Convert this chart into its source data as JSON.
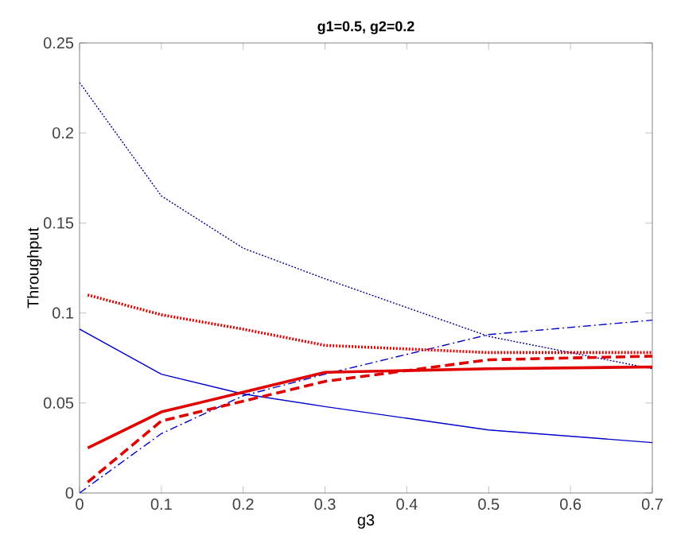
{
  "chart_data": {
    "type": "line",
    "title": "g1=0.5, g2=0.2",
    "xlabel": "g3",
    "ylabel": "Throughput",
    "xlim": [
      0,
      0.7
    ],
    "ylim": [
      0,
      0.25
    ],
    "xticks": [
      0,
      0.1,
      0.2,
      0.3,
      0.4,
      0.5,
      0.6,
      0.7
    ],
    "yticks": [
      0,
      0.05,
      0.1,
      0.15,
      0.2,
      0.25
    ],
    "grid": false,
    "marker": "none",
    "series": [
      {
        "color": "#0000cc",
        "line_style": "solid",
        "x": [
          0,
          0.1,
          0.2,
          0.3,
          0.5,
          0.7
        ],
        "values": [
          0.091,
          0.066,
          0.055,
          0.048,
          0.035,
          0.028
        ]
      },
      {
        "color": "#00008b",
        "line_style": "dotted",
        "x": [
          0,
          0.1,
          0.2,
          0.3,
          0.5,
          0.7
        ],
        "values": [
          0.228,
          0.165,
          0.136,
          0.119,
          0.087,
          0.069
        ]
      },
      {
        "color": "#0000cc",
        "line_style": "dashdot",
        "x": [
          0,
          0.1,
          0.2,
          0.3,
          0.5,
          0.7
        ],
        "values": [
          0,
          0.033,
          0.054,
          0.066,
          0.088,
          0.096
        ]
      },
      {
        "color": "#e00000",
        "line_style": "solid",
        "x": [
          0.01,
          0.1,
          0.2,
          0.3,
          0.5,
          0.7
        ],
        "values": [
          0.025,
          0.045,
          0.056,
          0.067,
          0.069,
          0.07
        ]
      },
      {
        "color": "#e00000",
        "line_style": "dashed",
        "x": [
          0.01,
          0.1,
          0.2,
          0.3,
          0.5,
          0.7
        ],
        "values": [
          0.006,
          0.04,
          0.051,
          0.062,
          0.074,
          0.076
        ]
      },
      {
        "color": "#e00000",
        "line_style": "dotted",
        "x": [
          0.01,
          0.1,
          0.2,
          0.3,
          0.5,
          0.7
        ],
        "values": [
          0.11,
          0.099,
          0.091,
          0.082,
          0.078,
          0.078
        ]
      }
    ]
  }
}
